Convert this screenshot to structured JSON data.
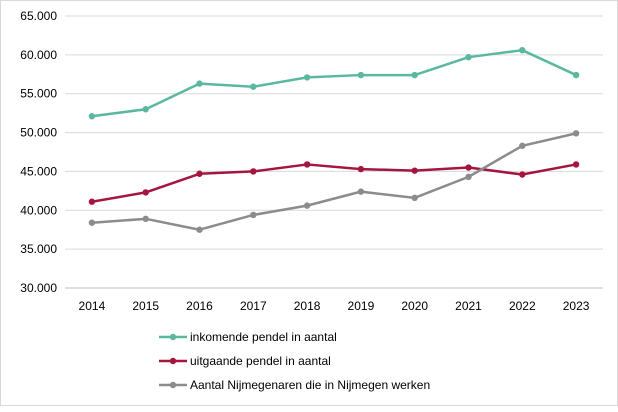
{
  "chart_data": {
    "type": "line",
    "title": "",
    "xlabel": "",
    "ylabel": "",
    "categories": [
      "2014",
      "2015",
      "2016",
      "2017",
      "2018",
      "2019",
      "2020",
      "2021",
      "2022",
      "2023"
    ],
    "ylim": [
      30000,
      65000
    ],
    "yticks": [
      30000,
      35000,
      40000,
      45000,
      50000,
      55000,
      60000,
      65000
    ],
    "ytick_labels": [
      "30.000",
      "35.000",
      "40.000",
      "45.000",
      "50.000",
      "55.000",
      "60.000",
      "65.000"
    ],
    "grid": "horizontal",
    "legend_position": "bottom",
    "series": [
      {
        "name": "inkomende pendel in aantal",
        "color": "#5bb8a0",
        "values": [
          52100,
          53000,
          56300,
          55900,
          57100,
          57400,
          57400,
          59700,
          60600,
          57400
        ]
      },
      {
        "name": "uitgaande pendel in aantal",
        "color": "#a5163f",
        "values": [
          41100,
          42300,
          44700,
          45000,
          45900,
          45300,
          45100,
          45500,
          44600,
          45900
        ]
      },
      {
        "name": "Aantal Nijmegenaren die in Nijmegen werken",
        "color": "#8c8c8c",
        "values": [
          38400,
          38900,
          37500,
          39400,
          40600,
          42400,
          41600,
          44300,
          48300,
          49900
        ]
      }
    ]
  }
}
